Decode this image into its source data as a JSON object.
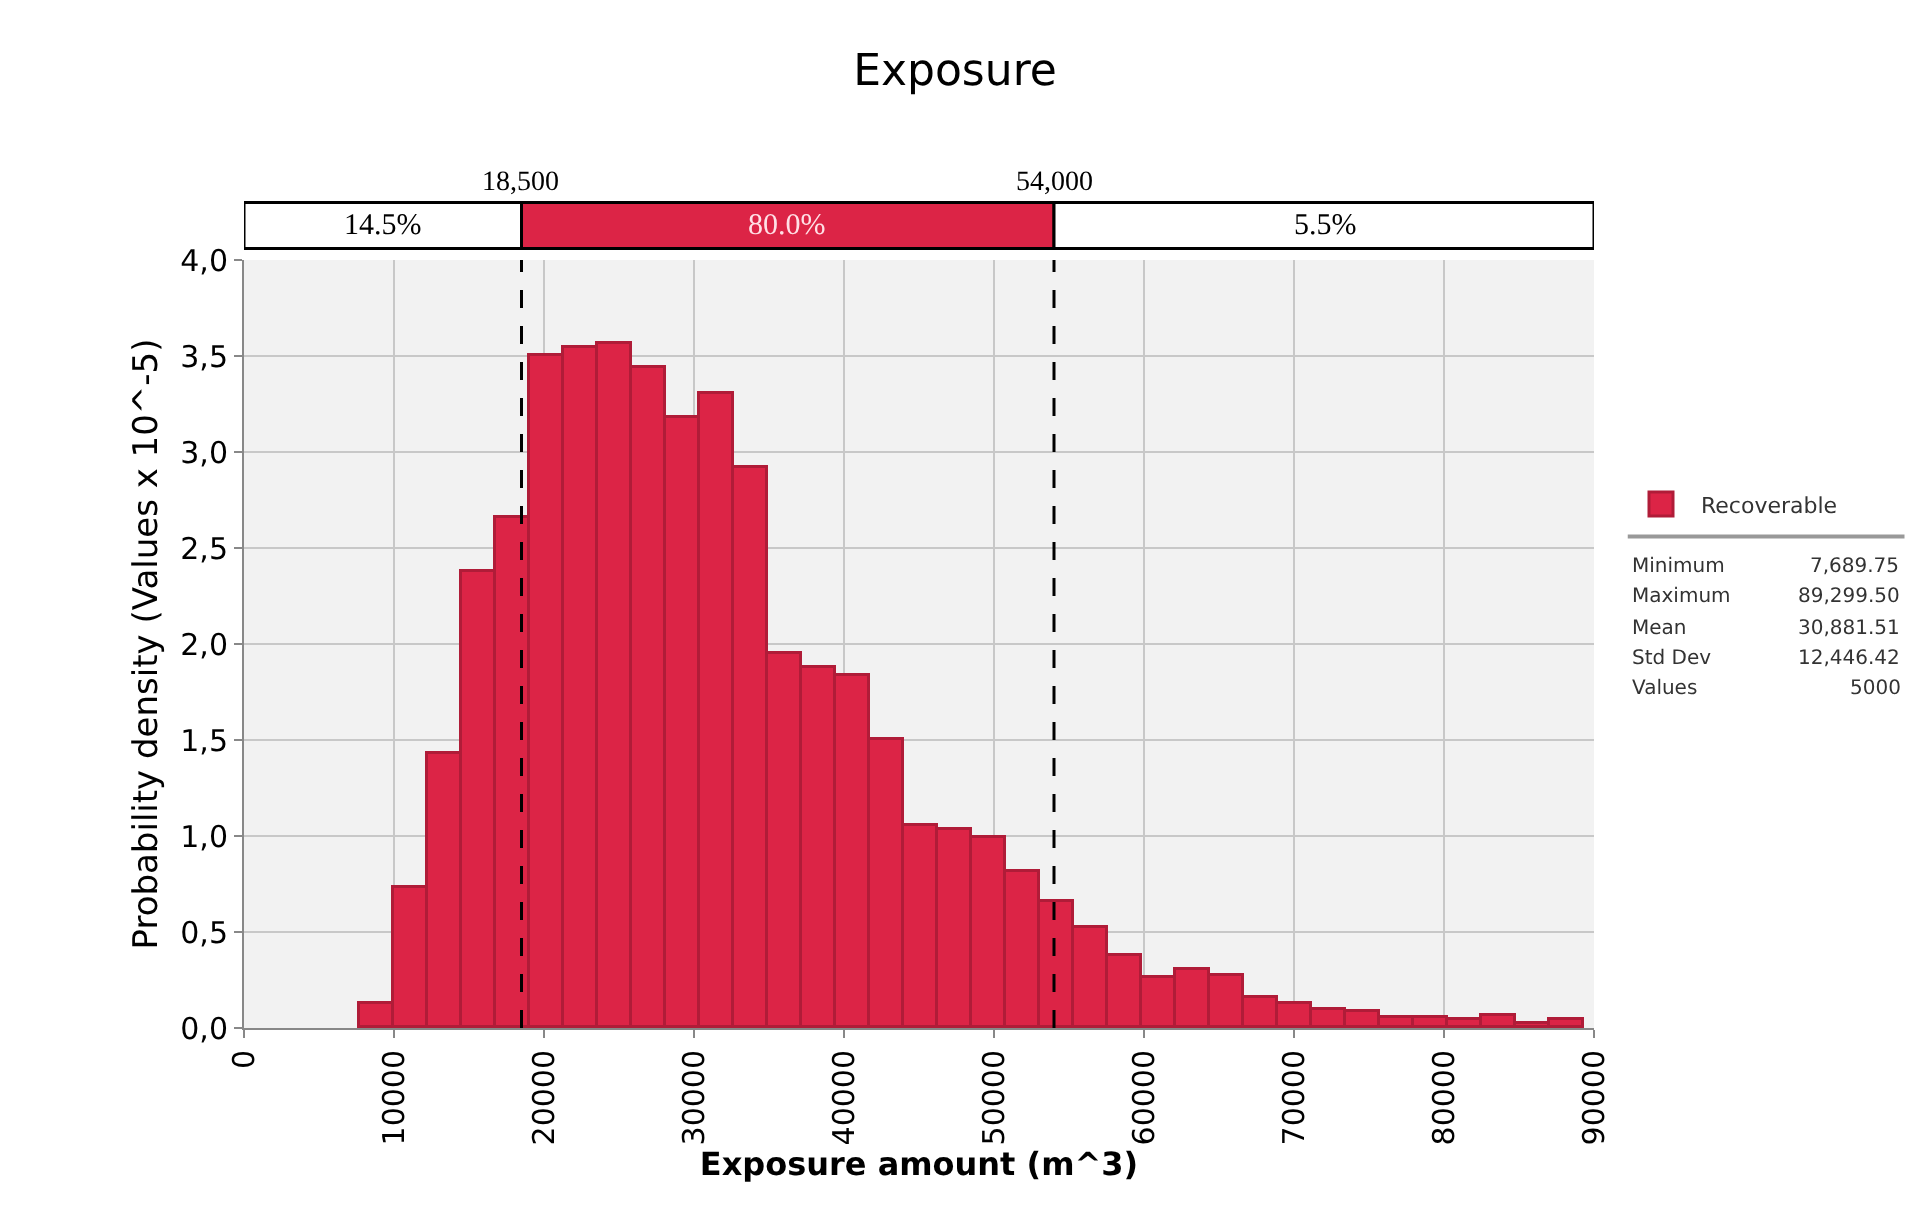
{
  "chart_data": {
    "type": "histogram",
    "title": "Exposure",
    "xlabel": "Exposure amount (m^3)",
    "ylabel": "Probability density (Values x 10^-5)",
    "bins": [
      7690,
      9957,
      12224,
      14491,
      16758,
      19025,
      21292,
      23559,
      25826,
      28093,
      30360,
      32627,
      34894,
      37161,
      39428,
      41695,
      43962,
      46229,
      48496,
      50763,
      53030,
      55297,
      57564,
      59831,
      62098,
      64365,
      66632,
      68899,
      71166,
      73433,
      75700,
      77967,
      80234,
      82501,
      84768,
      87035,
      89300
    ],
    "series": [
      {
        "name": "Recoverable",
        "color": "#dc2446",
        "values": [
          0.13,
          0.73,
          1.43,
          2.37,
          2.66,
          3.5,
          3.54,
          3.56,
          3.44,
          3.18,
          3.3,
          2.92,
          1.95,
          1.88,
          1.83,
          1.5,
          1.05,
          1.03,
          0.99,
          0.81,
          0.66,
          0.52,
          0.38,
          0.26,
          0.3,
          0.27,
          0.16,
          0.13,
          0.09,
          0.08,
          0.05,
          0.05,
          0.04,
          0.06,
          0.02,
          0.04
        ]
      }
    ],
    "xlim": [
      0,
      90000
    ],
    "xticks": [
      0,
      10000,
      20000,
      30000,
      40000,
      50000,
      60000,
      70000,
      80000,
      90000
    ],
    "ylim": [
      0,
      4
    ],
    "yticks": [
      {
        "value": 0,
        "label": "0,0"
      },
      {
        "value": 0.5,
        "label": "0,5"
      },
      {
        "value": 1,
        "label": "1,0"
      },
      {
        "value": 1.5,
        "label": "1,5"
      },
      {
        "value": 2,
        "label": "2,0"
      },
      {
        "value": 2.5,
        "label": "2,5"
      },
      {
        "value": 3,
        "label": "3,0"
      },
      {
        "value": 3.5,
        "label": "3,5"
      },
      {
        "value": 4,
        "label": "4,0"
      }
    ],
    "ref_lines": [
      {
        "axis": "x",
        "value": 18500,
        "label": "18,500",
        "line_style": "dashed",
        "color": "#000000"
      },
      {
        "axis": "x",
        "value": 54000,
        "label": "54,000",
        "line_style": "dashed",
        "color": "#000000"
      }
    ],
    "annotations": [
      "14.5%",
      "80.0%",
      "5.5%",
      "Minimum 7,689.75",
      "Maximum 89,299.50",
      "Mean 30,881.51",
      "Std Dev 12,446.42",
      "Values 5000"
    ],
    "grid": true,
    "legend": "right"
  }
}
